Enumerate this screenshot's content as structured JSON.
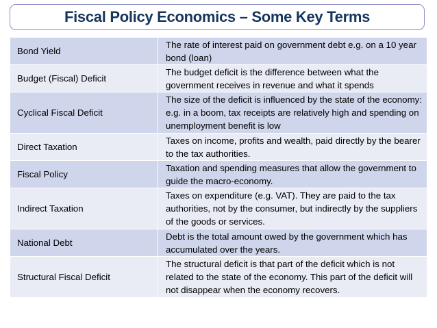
{
  "title": "Fiscal Policy Economics – Some Key Terms",
  "terms": [
    {
      "term": "Bond Yield",
      "definition": "The rate of interest paid on government debt e.g. on a 10 year bond (loan)"
    },
    {
      "term": "Budget (Fiscal) Deficit",
      "definition": "The budget deficit is the difference between what the government receives in revenue and what it spends"
    },
    {
      "term": "Cyclical Fiscal Deficit",
      "definition": "The size of the deficit is influenced by the state of the economy: e.g. in a boom, tax receipts are relatively high and spending on unemployment benefit is low"
    },
    {
      "term": "Direct Taxation",
      "definition": "Taxes on income, profits and wealth, paid directly by the bearer to the tax authorities."
    },
    {
      "term": "Fiscal Policy",
      "definition": "Taxation and spending measures that allow the government to guide the macro-economy."
    },
    {
      "term": "Indirect Taxation",
      "definition": "Taxes on expenditure (e.g. VAT). They are paid to the tax authorities, not by the consumer, but indirectly by the suppliers of the goods or services."
    },
    {
      "term": "National Debt",
      "definition": "Debt is the total amount owed by the government which has accumulated over the years."
    },
    {
      "term": "Structural Fiscal Deficit",
      "definition": "The structural deficit is that part of the deficit which is not related to the state of the economy.  This part of the deficit will not disappear when the economy recovers."
    }
  ]
}
